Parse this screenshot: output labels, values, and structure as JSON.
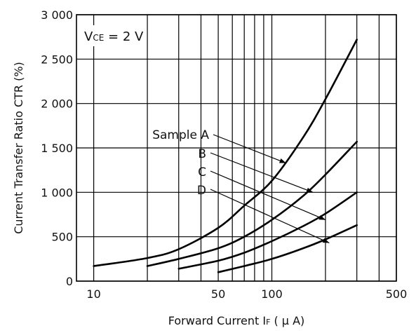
{
  "chart_data": {
    "type": "line",
    "xlabel": "Forward Current  I",
    "xlabel_sub": "F",
    "xlabel_unit": " ( μ A)",
    "ylabel": "Current Transfer Ratio  CTR (%)",
    "x_scale": "log",
    "xlim": [
      8,
      500
    ],
    "ylim": [
      0,
      3000
    ],
    "x_ticks": [
      {
        "v": 10,
        "label": "10"
      },
      {
        "v": 50,
        "label": "50"
      },
      {
        "v": 100,
        "label": "100"
      },
      {
        "v": 500,
        "label": "500"
      }
    ],
    "x_gridlines": [
      10,
      20,
      30,
      40,
      50,
      60,
      70,
      80,
      90,
      100,
      200,
      300,
      400,
      500
    ],
    "y_ticks": [
      {
        "v": 0,
        "label": "0"
      },
      {
        "v": 500,
        "label": "500"
      },
      {
        "v": 1000,
        "label": "1 000"
      },
      {
        "v": 1500,
        "label": "1 500"
      },
      {
        "v": 2000,
        "label": "2 000"
      },
      {
        "v": 2500,
        "label": "2 500"
      },
      {
        "v": 3000,
        "label": "3 000"
      }
    ],
    "grid": true,
    "condition": {
      "main": "V",
      "sub": "CE",
      "rest": " = 2 V"
    },
    "series": [
      {
        "name": "Sample A",
        "x": [
          10,
          20,
          30,
          50,
          70,
          100,
          150,
          200,
          300
        ],
        "y": [
          170,
          260,
          360,
          600,
          850,
          1130,
          1620,
          2050,
          2720
        ]
      },
      {
        "name": "B",
        "x": [
          20,
          30,
          50,
          70,
          100,
          150,
          200,
          300
        ],
        "y": [
          170,
          250,
          370,
          500,
          690,
          960,
          1200,
          1570
        ]
      },
      {
        "name": "C",
        "x": [
          30,
          50,
          70,
          100,
          150,
          200,
          300
        ],
        "y": [
          140,
          230,
          320,
          450,
          620,
          760,
          1000
        ]
      },
      {
        "name": "D",
        "x": [
          50,
          70,
          100,
          150,
          200,
          300
        ],
        "y": [
          100,
          170,
          250,
          370,
          470,
          630
        ]
      }
    ],
    "annotations": [
      {
        "label": "Sample A",
        "target": [
          120,
          1330
        ]
      },
      {
        "label": "B",
        "target": [
          170,
          1000
        ]
      },
      {
        "label": "C",
        "target": [
          200,
          690
        ]
      },
      {
        "label": "D",
        "target": [
          210,
          430
        ]
      }
    ]
  }
}
